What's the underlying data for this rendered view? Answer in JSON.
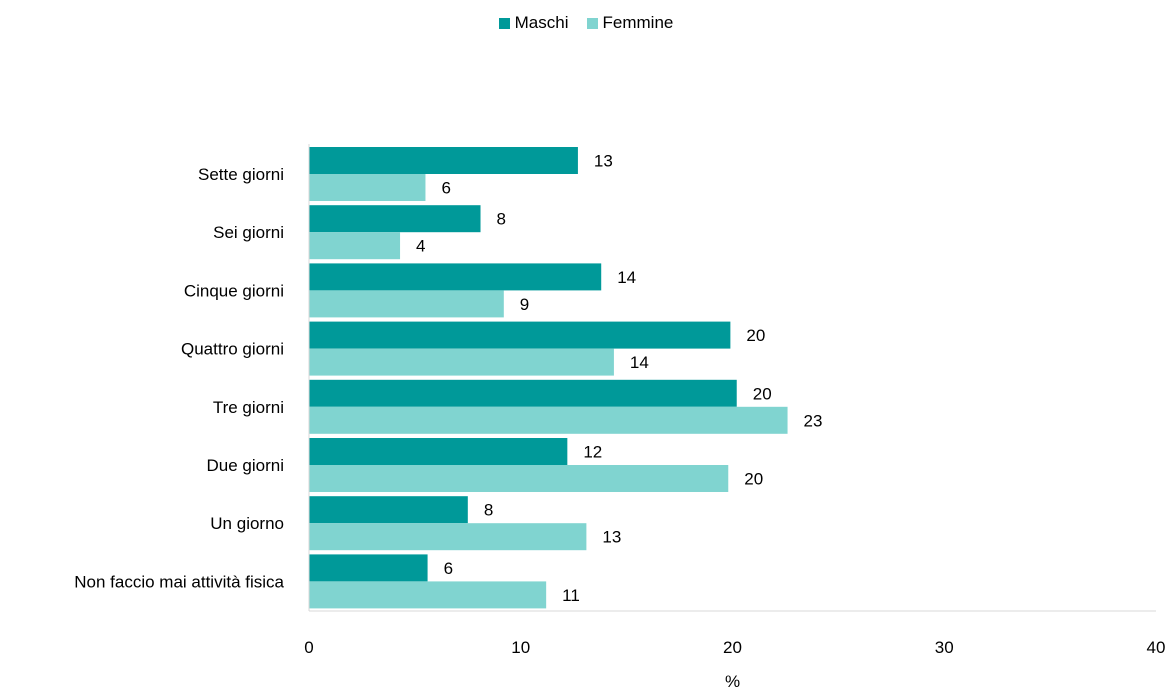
{
  "chart_data": {
    "type": "bar",
    "orientation": "horizontal",
    "categories": [
      "Sette giorni",
      "Sei giorni",
      "Cinque giorni",
      "Quattro giorni",
      "Tre giorni",
      "Due giorni",
      "Un giorno",
      "Non faccio mai attività fisica"
    ],
    "series": [
      {
        "name": "Maschi",
        "color": "#009999",
        "values": [
          12.7,
          8.1,
          13.8,
          19.9,
          20.2,
          12.2,
          7.5,
          5.6
        ],
        "labels": [
          "13",
          "8",
          "14",
          "20",
          "20",
          "12",
          "8",
          "6"
        ]
      },
      {
        "name": "Femmine",
        "color": "#80D4D0",
        "values": [
          5.5,
          4.3,
          9.2,
          14.4,
          22.6,
          19.8,
          13.1,
          11.2
        ],
        "labels": [
          "6",
          "4",
          "9",
          "14",
          "23",
          "20",
          "13",
          "11"
        ]
      }
    ],
    "xlabel": "%",
    "xlim": [
      0,
      40
    ],
    "xticks": [
      "0",
      "10",
      "20",
      "30",
      "40"
    ],
    "legend_position": "top-center",
    "grid": false
  }
}
